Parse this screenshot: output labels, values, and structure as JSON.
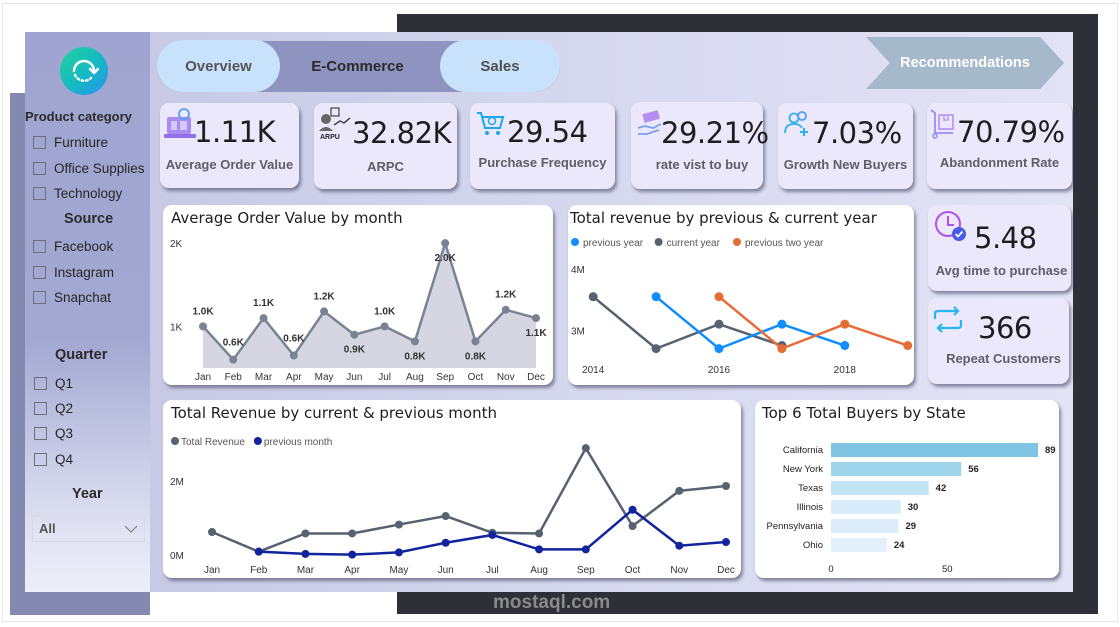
{
  "sidebar": {
    "product_category": {
      "title": "Product category",
      "items": [
        "Furniture",
        "Office Supplies",
        "Technology"
      ]
    },
    "source": {
      "title": "Source",
      "items": [
        "Facebook",
        "Instagram",
        "Snapchat"
      ]
    },
    "quarter": {
      "title": "Quarter",
      "items": [
        "Q1",
        "Q2",
        "Q3",
        "Q4"
      ]
    },
    "year": {
      "title": "Year",
      "selected": "All"
    }
  },
  "nav": {
    "tabs": [
      "Overview",
      "E-Commerce",
      "Sales"
    ],
    "active": "E-Commerce",
    "recommendations": "Recommendations"
  },
  "kpis": [
    {
      "icon": "laptop-chart-icon",
      "value": "1.11K",
      "label": "Average Order Value"
    },
    {
      "icon": "arpu-user-icon",
      "value": "32.82K",
      "label": "ARPC",
      "icon_text": "ARPU"
    },
    {
      "icon": "shopping-cart-icon",
      "value": "29.54",
      "label": "Purchase Frequency"
    },
    {
      "icon": "hand-money-icon",
      "value": "29.21%",
      "label": "rate vist to buy"
    },
    {
      "icon": "add-users-icon",
      "value": "7.03%",
      "label": "Growth New Buyers"
    },
    {
      "icon": "cart-box-icon",
      "value": "70.79%",
      "label": "Abandonment Rate"
    },
    {
      "icon": "clock-check-icon",
      "value": "5.48",
      "label": "Avg time to purchase"
    },
    {
      "icon": "repeat-icon",
      "value": "366",
      "label": "Repeat Customers"
    }
  ],
  "colors": {
    "gray_line": "#7a8394",
    "current_year": "#566270",
    "previous_year": "#118dff",
    "previous_two_year": "#e66c37",
    "previous_month": "#12239e",
    "bar_top": "#7fc4e2"
  },
  "chart_data": [
    {
      "id": "aov",
      "type": "area",
      "title": "Average Order Value by month",
      "categories": [
        "Jan",
        "Feb",
        "Mar",
        "Apr",
        "May",
        "Jun",
        "Jul",
        "Aug",
        "Sep",
        "Oct",
        "Nov",
        "Dec"
      ],
      "values": [
        1000,
        600,
        1100,
        650,
        1180,
        900,
        1000,
        820,
        2000,
        820,
        1200,
        1100
      ],
      "data_labels": [
        "1.0K",
        "0.6K",
        "1.1K",
        "0.6K",
        "1.2K",
        "0.9K",
        "1.0K",
        "0.8K",
        "2.0K",
        "0.8K",
        "1.2K",
        "1.1K"
      ],
      "yticks": [
        "2K",
        "1K"
      ],
      "ytick_values": [
        2000,
        1000
      ],
      "ylim": [
        500,
        2050
      ]
    },
    {
      "id": "yearly",
      "type": "line",
      "title": "Total revenue by previous & current year",
      "xticks": [
        "2014",
        "2016",
        "2018"
      ],
      "xtick_values": [
        2014,
        2016,
        2018
      ],
      "yticks": [
        "4M",
        "3M"
      ],
      "ytick_values": [
        4000000,
        3000000
      ],
      "xlim": [
        2013.6,
        2019.1
      ],
      "ylim": [
        2350000,
        4150000
      ],
      "legend": "top-left",
      "series": [
        {
          "name": "previous year",
          "color": "#118dff",
          "x": [
            2015,
            2016,
            2017,
            2018
          ],
          "y": [
            3550000,
            2700000,
            3100000,
            2750000
          ]
        },
        {
          "name": "current year",
          "color": "#566270",
          "x": [
            2014,
            2015,
            2016,
            2017
          ],
          "y": [
            3550000,
            2700000,
            3100000,
            2750000
          ]
        },
        {
          "name": "previous  two year",
          "color": "#e66c37",
          "x": [
            2016,
            2017,
            2018,
            2019
          ],
          "y": [
            3550000,
            2700000,
            3100000,
            2750000
          ]
        }
      ]
    },
    {
      "id": "monthly",
      "type": "line",
      "title": "Total Revenue by current & previous month",
      "categories": [
        "Jan",
        "Feb",
        "Mar",
        "Apr",
        "May",
        "Jun",
        "Jul",
        "Aug",
        "Sep",
        "Oct",
        "Nov",
        "Dec"
      ],
      "yticks": [
        "2M",
        "0M"
      ],
      "ytick_values": [
        2000000,
        0
      ],
      "ylim": [
        0,
        3100000
      ],
      "legend": "top-left",
      "series": [
        {
          "name": "Total Revenue",
          "color": "#566270",
          "values": [
            620000,
            90000,
            580000,
            580000,
            820000,
            1050000,
            600000,
            580000,
            2880000,
            780000,
            1730000,
            1860000
          ]
        },
        {
          "name": "previous month",
          "color": "#12239e",
          "values": [
            null,
            90000,
            30000,
            10000,
            70000,
            330000,
            540000,
            150000,
            150000,
            1220000,
            250000,
            350000
          ]
        }
      ]
    },
    {
      "id": "states",
      "type": "bar",
      "orientation": "horizontal",
      "title": "Top 6 Total Buyers by State",
      "categories": [
        "California",
        "New York",
        "Texas",
        "Illinois",
        "Pennsylvania",
        "Ohio"
      ],
      "values": [
        89,
        56,
        42,
        30,
        29,
        24
      ],
      "xticks": [
        "0",
        "50"
      ],
      "xtick_values": [
        0,
        50
      ],
      "xlim": [
        0,
        89
      ],
      "bar_colors": [
        "#7fc4e2",
        "#9ed4ec",
        "#c3e4f6",
        "#d9ecfb",
        "#dcecfb",
        "#e2f0fc"
      ]
    }
  ],
  "watermark": "mostaql.com"
}
